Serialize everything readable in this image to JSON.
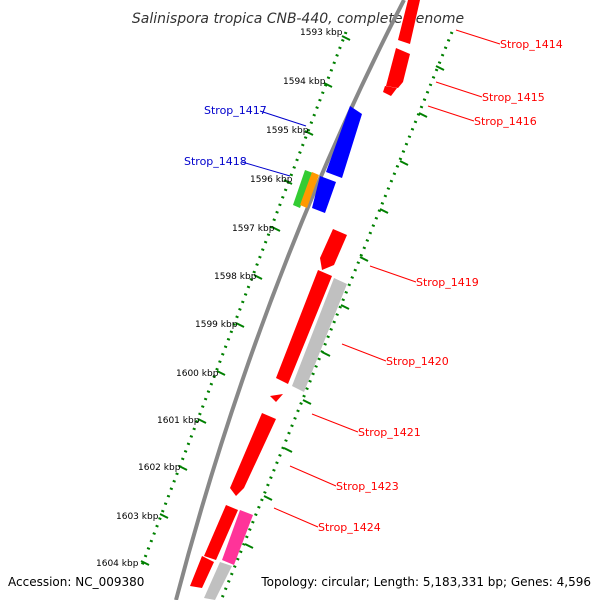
{
  "title": "Salinispora tropica CNB-440, complete genome",
  "accession": "Accession: NC_009380",
  "summary": "Topology: circular; Length: 5,183,331 bp; Genes: 4,596",
  "colors": {
    "backbone": "#808080",
    "forward": "#ff0000",
    "reverse_blue": "#0000ff",
    "tick": "#008000",
    "label_forward": "#ff0000",
    "label_reverse": "#0000cc",
    "gray_feature": "#c0c0c0",
    "green_feature": "#33cc33",
    "orange_feature": "#ff9900",
    "magenta_feature": "#ff3399"
  },
  "kbp_labels": [
    "1593 kbp",
    "1594 kbp",
    "1595 kbp",
    "1596 kbp",
    "1597 kbp",
    "1598 kbp",
    "1599 kbp",
    "1600 kbp",
    "1601 kbp",
    "1602 kbp",
    "1603 kbp",
    "1604 kbp"
  ],
  "genes_right": [
    "Strop_1414",
    "Strop_1415",
    "Strop_1416",
    "Strop_1419",
    "Strop_1420",
    "Strop_1421",
    "Strop_1423",
    "Strop_1424"
  ],
  "genes_left": [
    "Strop_1417",
    "Strop_1418"
  ]
}
